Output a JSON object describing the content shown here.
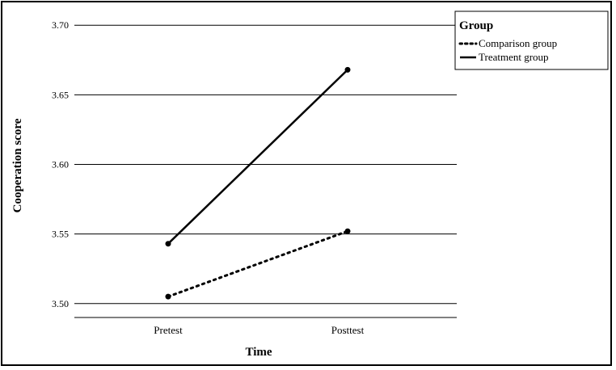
{
  "chart_data": {
    "type": "line",
    "xlabel": "Time",
    "ylabel": "Cooperation score",
    "categories": [
      "Pretest",
      "Posttest"
    ],
    "ylim": [
      3.49,
      3.71
    ],
    "yticks": [
      "3.50",
      "3.55",
      "3.60",
      "3.65",
      "3.70"
    ],
    "grid": "horizontal",
    "legend": {
      "title": "Group",
      "position": "top-right",
      "entries": [
        "Comparison group",
        "Treatment group"
      ]
    },
    "series": [
      {
        "name": "Comparison group",
        "style": "dotted",
        "values": [
          3.505,
          3.552
        ]
      },
      {
        "name": "Treatment group",
        "style": "solid",
        "values": [
          3.543,
          3.668
        ]
      }
    ],
    "colors": {
      "line": "#000000",
      "grid": "#000000"
    }
  }
}
